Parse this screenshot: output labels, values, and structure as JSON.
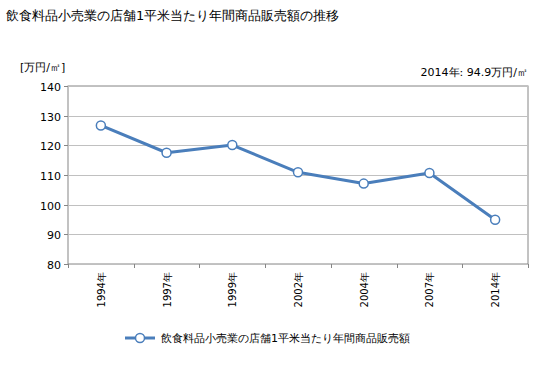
{
  "chart_data": {
    "type": "line",
    "title": "飲食料品小売業の店舗1平米当たり年間商品販売額の推移",
    "y_label": "[万円/㎡]",
    "annotation": "2014年: 94.9万円/㎡",
    "categories": [
      "1994年",
      "1997年",
      "1999年",
      "2002年",
      "2004年",
      "2007年",
      "2014年"
    ],
    "series": [
      {
        "name": "飲食料品小売業の店舗1平米当たり年間商品販売額",
        "color": "#4a7ebb",
        "values": [
          126.7,
          117.5,
          120.1,
          110.9,
          107.1,
          110.7,
          94.9
        ],
        "marker": "circle"
      }
    ],
    "ylim": [
      80,
      140
    ],
    "yticks": [
      80,
      90,
      100,
      110,
      120,
      130,
      140
    ],
    "grid": true,
    "legend": "bottom"
  }
}
